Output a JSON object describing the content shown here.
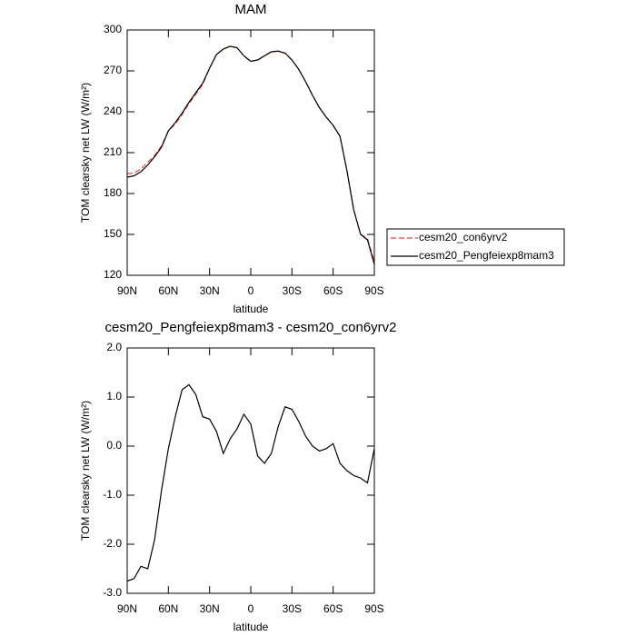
{
  "chart_data": [
    {
      "type": "line",
      "title": "MAM",
      "xlabel": "latitude",
      "ylabel": "TOM clearsky net LW (W/m²)",
      "x": [
        90,
        85,
        80,
        75,
        70,
        65,
        60,
        55,
        50,
        45,
        40,
        35,
        30,
        25,
        20,
        15,
        10,
        5,
        0,
        -5,
        -10,
        -15,
        -20,
        -25,
        -30,
        -35,
        -40,
        -45,
        -50,
        -55,
        -60,
        -65,
        -70,
        -75,
        -80,
        -85,
        -90
      ],
      "xlim": [
        90,
        -90
      ],
      "xticks": [
        {
          "value": 90,
          "label": "90N"
        },
        {
          "value": 60,
          "label": "60N"
        },
        {
          "value": 30,
          "label": "30N"
        },
        0,
        {
          "value": -30,
          "label": "30S"
        },
        {
          "value": -60,
          "label": "60S"
        },
        {
          "value": -90,
          "label": "90S"
        }
      ],
      "ylim": [
        120,
        300
      ],
      "yticks": [
        120,
        150,
        180,
        210,
        240,
        270,
        300
      ],
      "legend": "outside-right",
      "series": [
        {
          "name": "cesm20_con6yrv2",
          "color": "#e8443a",
          "dashed": true,
          "values": [
            194.5,
            195,
            198,
            203,
            208,
            215,
            226,
            231,
            238,
            246,
            253,
            260,
            272,
            282,
            286,
            288,
            287,
            281,
            277,
            278,
            281,
            284,
            284.5,
            283,
            278,
            271,
            262,
            252,
            243,
            236,
            230,
            222,
            197,
            168,
            150,
            147,
            130
          ]
        },
        {
          "name": "cesm20_Pengfeiexp8mam3",
          "color": "#000000",
          "dashed": false,
          "values": [
            192,
            193,
            196,
            201,
            207,
            214,
            226,
            232,
            239,
            247,
            254,
            261,
            272,
            282,
            286,
            288,
            287,
            281,
            277,
            278,
            281,
            284,
            284.5,
            283,
            278,
            271,
            262,
            252,
            243,
            236,
            230,
            222,
            197,
            168,
            150,
            146,
            128
          ]
        }
      ]
    },
    {
      "type": "line",
      "title": "cesm20_Pengfeiexp8mam3 - cesm20_con6yrv2",
      "xlabel": "latitude",
      "ylabel": "TOM clearsky net LW (W/m²)",
      "x": [
        90,
        85,
        80,
        75,
        70,
        65,
        60,
        55,
        50,
        45,
        40,
        35,
        30,
        25,
        20,
        15,
        10,
        5,
        0,
        -5,
        -10,
        -15,
        -20,
        -25,
        -30,
        -35,
        -40,
        -45,
        -50,
        -55,
        -60,
        -65,
        -70,
        -75,
        -80,
        -85,
        -90
      ],
      "xlim": [
        90,
        -90
      ],
      "xticks": [
        {
          "value": 90,
          "label": "90N"
        },
        {
          "value": 60,
          "label": "60N"
        },
        {
          "value": 30,
          "label": "30N"
        },
        0,
        {
          "value": -30,
          "label": "30S"
        },
        {
          "value": -60,
          "label": "60S"
        },
        {
          "value": -90,
          "label": "90S"
        }
      ],
      "ylim": [
        -3,
        2
      ],
      "yticks": [
        {
          "value": -3,
          "label": "-3.0"
        },
        {
          "value": -2,
          "label": "-2.0"
        },
        {
          "value": -1,
          "label": "-1.0"
        },
        {
          "value": 0,
          "label": "0.0"
        },
        {
          "value": 1,
          "label": "1.0"
        },
        {
          "value": 2,
          "label": "2.0"
        }
      ],
      "series": [
        {
          "color": "#000000",
          "dashed": false,
          "values": [
            -2.75,
            -2.7,
            -2.45,
            -2.5,
            -1.9,
            -0.9,
            -0.05,
            0.6,
            1.15,
            1.25,
            1.05,
            0.6,
            0.55,
            0.3,
            -0.15,
            0.15,
            0.35,
            0.65,
            0.45,
            -0.2,
            -0.35,
            -0.15,
            0.4,
            0.8,
            0.75,
            0.5,
            0.2,
            0.0,
            -0.1,
            -0.05,
            0.05,
            -0.35,
            -0.5,
            -0.6,
            -0.65,
            -0.75,
            -0.05
          ]
        }
      ]
    }
  ]
}
